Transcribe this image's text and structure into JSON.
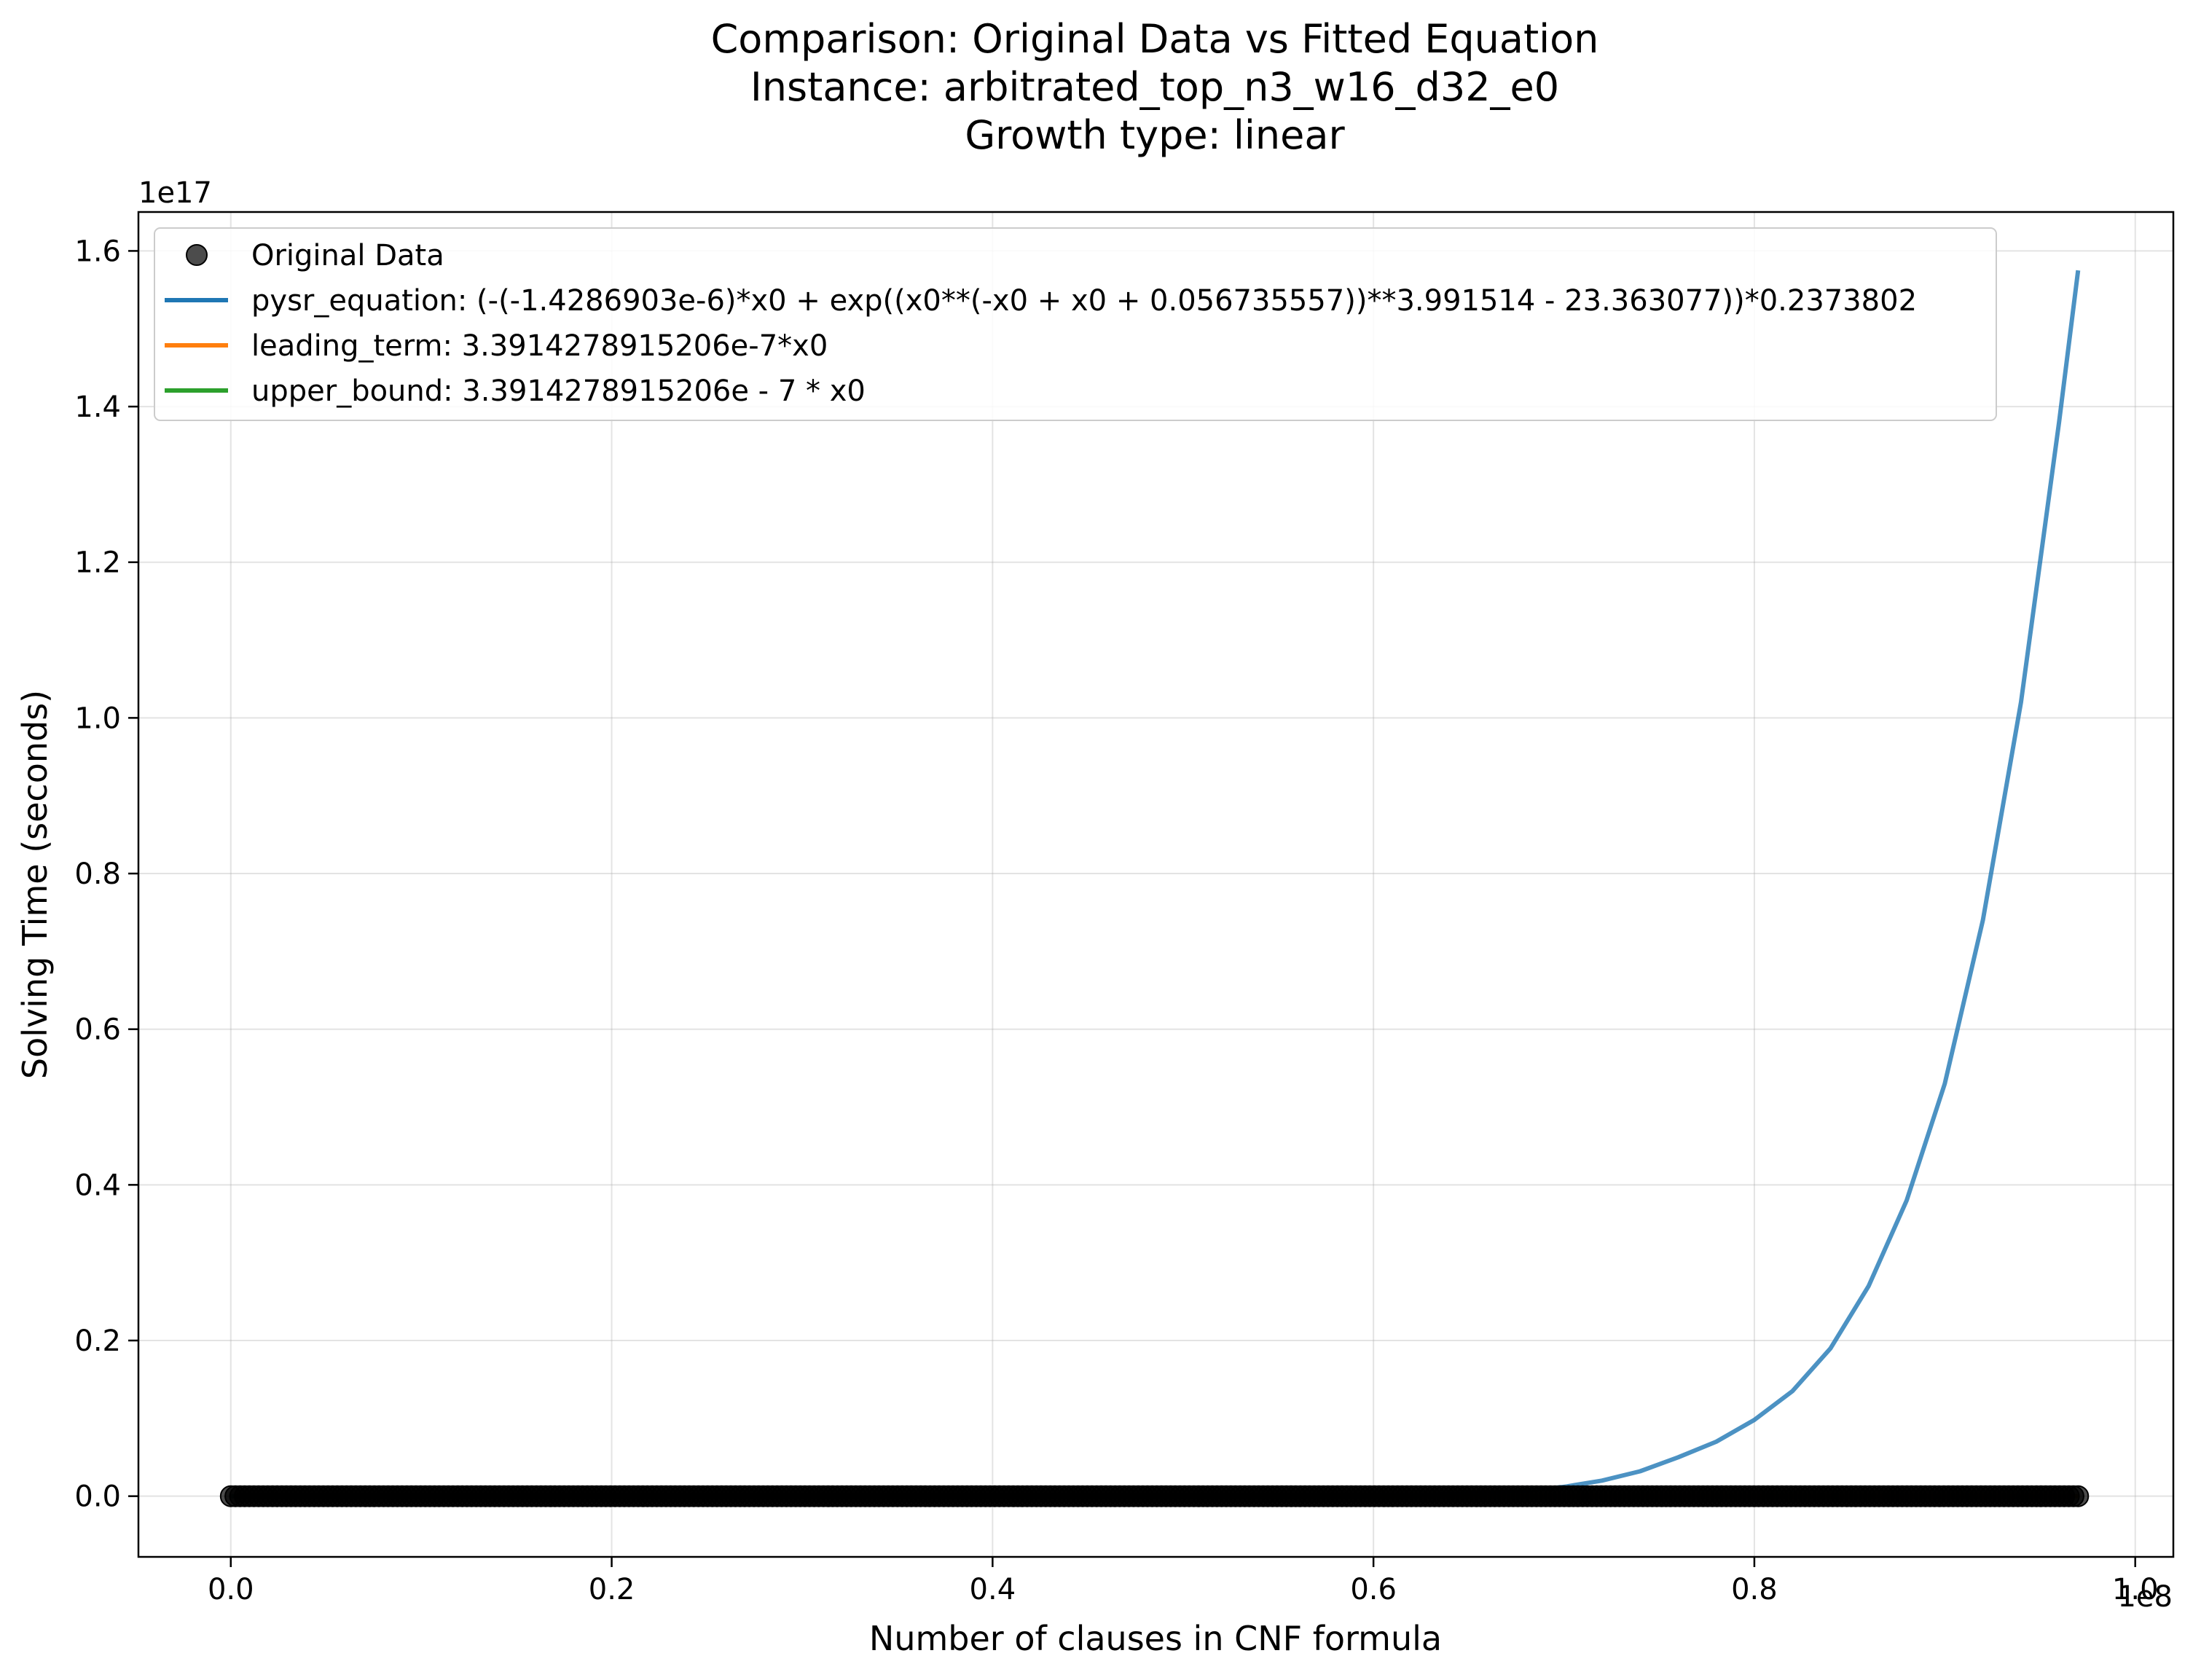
{
  "chart_data": {
    "type": "line",
    "title_lines": [
      "Comparison: Original Data vs Fitted Equation",
      "Instance: arbitrated_top_n3_w16_d32_e0",
      "Growth type: linear"
    ],
    "xlabel": "Number of clauses in CNF formula",
    "ylabel": "Solving Time (seconds)",
    "x_offset_text": "1e8",
    "y_offset_text": "1e17",
    "x_scale": 100000000,
    "y_scale": 100000000000000000,
    "xlim": [
      -4850000,
      102000000
    ],
    "ylim": [
      -7800000000000000,
      165000000000000000
    ],
    "x_ticks": [
      0,
      20000000,
      40000000,
      60000000,
      80000000,
      100000000
    ],
    "x_tick_labels": [
      "0.0",
      "0.2",
      "0.4",
      "0.6",
      "0.8",
      "1.0"
    ],
    "y_ticks": [
      0,
      20000000000000000,
      40000000000000000,
      60000000000000000,
      80000000000000000,
      100000000000000000,
      120000000000000000,
      140000000000000000,
      160000000000000000
    ],
    "y_tick_labels": [
      "0.0",
      "0.2",
      "0.4",
      "0.6",
      "0.8",
      "1.0",
      "1.2",
      "1.4",
      "1.6"
    ],
    "grid": true,
    "legend_position": "upper-left",
    "original_data": {
      "name": "Original Data",
      "color": "#000000",
      "x_range": [
        0,
        97000000
      ],
      "y_value": 0
    },
    "series": [
      {
        "name": "pysr_equation: (-(-1.4286903e-6)*x0 + exp((x0**(-x0 + x0 + 0.056735557))**3.991514 - 23.363077))*0.2373802",
        "color": "#1f77b4",
        "x": [
          0,
          60000000,
          65000000,
          68000000,
          70000000,
          72000000,
          74000000,
          76000000,
          78000000,
          80000000,
          82000000,
          84000000,
          86000000,
          88000000,
          90000000,
          92000000,
          94000000,
          96000000,
          97000000
        ],
        "y": [
          0,
          0,
          300000000000000,
          700000000000000,
          1200000000000000,
          2000000000000000,
          3200000000000000,
          5000000000000000,
          7000000000000000,
          9800000000000000,
          13500000000000000,
          19000000000000000,
          27000000000000000,
          38000000000000000,
          53000000000000000,
          74000000000000000,
          102000000000000000,
          138000000000000000,
          157500000000000000
        ]
      },
      {
        "name": "leading_term: 3.3914278915206e-7*x0",
        "color": "#ff7f0e",
        "x": [
          0,
          97000000
        ],
        "y": [
          0,
          32.9
        ]
      },
      {
        "name": "upper_bound: 3.3914278915206e - 7 * x0",
        "color": "#2ca02c",
        "x": [
          0,
          97000000
        ],
        "y": [
          0,
          32.9
        ]
      }
    ]
  }
}
